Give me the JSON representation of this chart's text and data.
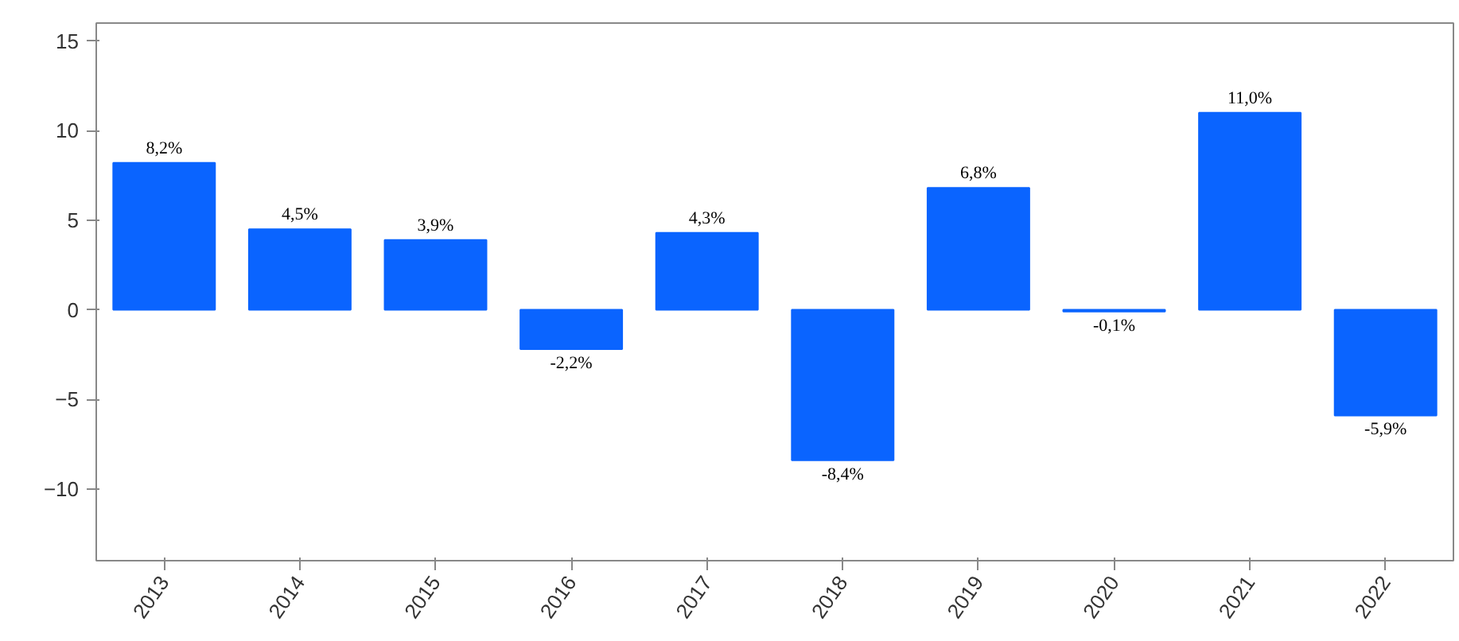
{
  "chart_data": {
    "type": "bar",
    "categories": [
      "2013",
      "2014",
      "2015",
      "2016",
      "2017",
      "2018",
      "2019",
      "2020",
      "2021",
      "2022"
    ],
    "values": [
      8.2,
      4.5,
      3.9,
      -2.2,
      4.3,
      -8.4,
      6.8,
      -0.1,
      11.0,
      -5.9
    ],
    "value_labels": [
      "8,2%",
      "4,5%",
      "3,9%",
      "-2,2%",
      "4,3%",
      "-8,4%",
      "6,8%",
      "-0,1%",
      "11,0%",
      "-5,9%"
    ],
    "color": "#0a64ff",
    "ylim": [
      -14,
      16
    ],
    "yticks": [
      -10,
      -5,
      0,
      5,
      10,
      15
    ],
    "grid": false
  }
}
